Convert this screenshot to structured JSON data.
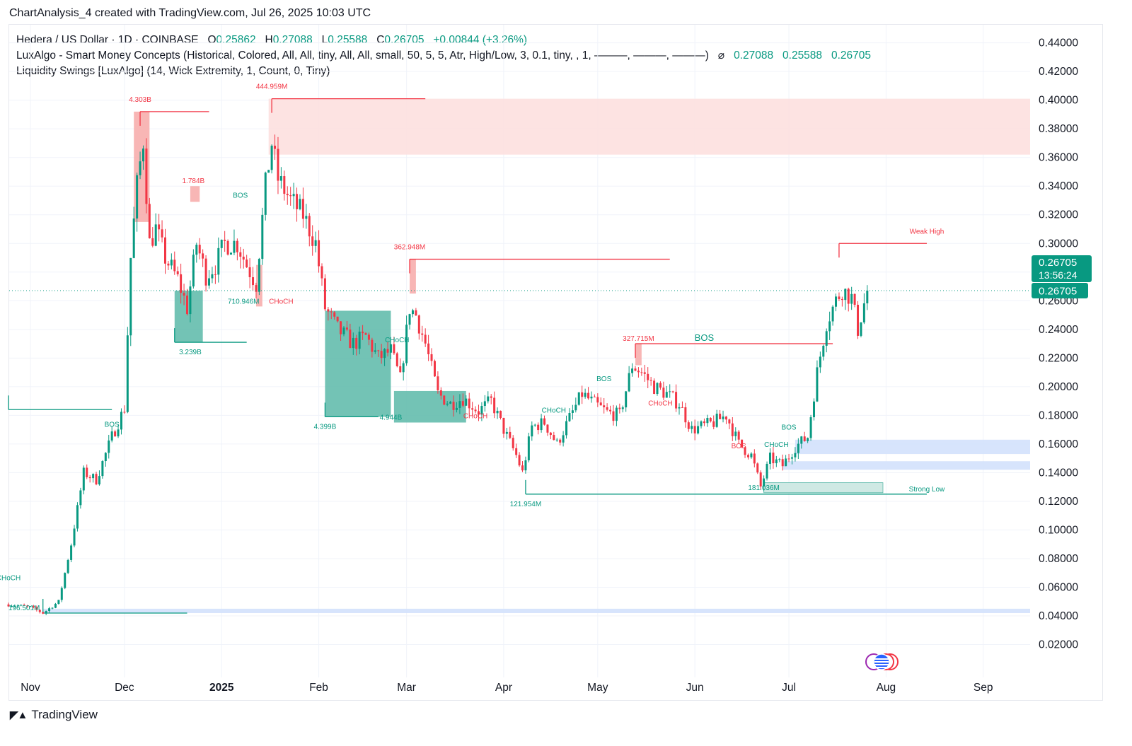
{
  "header": {
    "title": "ChartAnalysis_4 created with TradingView.com, Jul 26, 2025 10:03 UTC"
  },
  "legend": {
    "symbol": "Hedera / US Dollar · 1D · COINBASE",
    "o_label": "O",
    "o_value": "0.25862",
    "h_label": "H",
    "h_value": "0.27088",
    "l_label": "L",
    "l_value": "0.25588",
    "c_label": "C",
    "c_value": "0.26705",
    "change": "+0.00844 (+3.26%)",
    "indicator1": "LuxAlgo - Smart Money Concepts (Historical, Colored, All, All, tiny, All, All, small, 50, 5, 5, Atr, High/Low, 3, 0.1, tiny, , 1, ———, ———, ———)",
    "indicator1_values": [
      "0.27088",
      "0.25588",
      "0.26705"
    ],
    "indicator2": "Liquidity Swings [LuxAlgo] (14, Wick Extremity, 1, Count, 0, Tiny)"
  },
  "brand": {
    "name": "TradingView"
  },
  "price_badge": {
    "price": "0.26705",
    "countdown": "13:56:24"
  },
  "chart_data": {
    "type": "candlestick",
    "x_axis": {
      "ticks": [
        "Nov",
        "Dec",
        "2025",
        "Feb",
        "Mar",
        "Apr",
        "May",
        "Jun",
        "Jul",
        "Aug",
        "Sep"
      ],
      "dates": [
        "2024-11-01",
        "2024-12-01",
        "2025-01-01",
        "2025-02-01",
        "2025-03-01",
        "2025-04-01",
        "2025-05-01",
        "2025-06-01",
        "2025-07-01",
        "2025-08-01",
        "2025-09-01"
      ]
    },
    "y_axis": {
      "min": 0.005,
      "max": 0.45,
      "ticks": [
        "0.02000",
        "0.04000",
        "0.06000",
        "0.08000",
        "0.10000",
        "0.12000",
        "0.14000",
        "0.16000",
        "0.18000",
        "0.20000",
        "0.22000",
        "0.24000",
        "0.26000",
        "0.28000",
        "0.30000",
        "0.32000",
        "0.34000",
        "0.36000",
        "0.38000",
        "0.40000",
        "0.42000",
        "0.44000"
      ]
    },
    "anchors": [
      [
        "2024-10-25",
        0.048
      ],
      [
        "2024-11-01",
        0.046
      ],
      [
        "2024-11-05",
        0.042
      ],
      [
        "2024-11-10",
        0.05
      ],
      [
        "2024-11-14",
        0.09
      ],
      [
        "2024-11-18",
        0.14
      ],
      [
        "2024-11-22",
        0.135
      ],
      [
        "2024-11-27",
        0.165
      ],
      [
        "2024-12-01",
        0.185
      ],
      [
        "2024-12-03",
        0.29
      ],
      [
        "2024-12-05",
        0.34
      ],
      [
        "2024-12-07",
        0.372
      ],
      [
        "2024-12-09",
        0.3
      ],
      [
        "2024-12-11",
        0.31
      ],
      [
        "2024-12-14",
        0.29
      ],
      [
        "2024-12-18",
        0.275
      ],
      [
        "2024-12-21",
        0.255
      ],
      [
        "2024-12-24",
        0.3
      ],
      [
        "2024-12-27",
        0.278
      ],
      [
        "2024-12-30",
        0.285
      ],
      [
        "2025-01-02",
        0.3
      ],
      [
        "2025-01-06",
        0.3
      ],
      [
        "2025-01-09",
        0.285
      ],
      [
        "2025-01-12",
        0.272
      ],
      [
        "2025-01-15",
        0.34
      ],
      [
        "2025-01-17",
        0.37
      ],
      [
        "2025-01-19",
        0.345
      ],
      [
        "2025-01-23",
        0.33
      ],
      [
        "2025-01-27",
        0.32
      ],
      [
        "2025-01-31",
        0.3
      ],
      [
        "2025-02-03",
        0.255
      ],
      [
        "2025-02-07",
        0.24
      ],
      [
        "2025-02-12",
        0.23
      ],
      [
        "2025-02-16",
        0.235
      ],
      [
        "2025-02-20",
        0.22
      ],
      [
        "2025-02-24",
        0.225
      ],
      [
        "2025-02-27",
        0.205
      ],
      [
        "2025-03-02",
        0.255
      ],
      [
        "2025-03-04",
        0.25
      ],
      [
        "2025-03-07",
        0.23
      ],
      [
        "2025-03-11",
        0.195
      ],
      [
        "2025-03-15",
        0.188
      ],
      [
        "2025-03-19",
        0.192
      ],
      [
        "2025-03-24",
        0.183
      ],
      [
        "2025-03-28",
        0.19
      ],
      [
        "2025-04-01",
        0.17
      ],
      [
        "2025-04-05",
        0.152
      ],
      [
        "2025-04-07",
        0.14
      ],
      [
        "2025-04-10",
        0.172
      ],
      [
        "2025-04-14",
        0.175
      ],
      [
        "2025-04-18",
        0.16
      ],
      [
        "2025-04-22",
        0.178
      ],
      [
        "2025-04-26",
        0.195
      ],
      [
        "2025-04-30",
        0.188
      ],
      [
        "2025-05-04",
        0.182
      ],
      [
        "2025-05-08",
        0.18
      ],
      [
        "2025-05-12",
        0.215
      ],
      [
        "2025-05-15",
        0.21
      ],
      [
        "2025-05-19",
        0.2
      ],
      [
        "2025-05-23",
        0.195
      ],
      [
        "2025-05-27",
        0.188
      ],
      [
        "2025-05-31",
        0.17
      ],
      [
        "2025-06-03",
        0.172
      ],
      [
        "2025-06-07",
        0.175
      ],
      [
        "2025-06-11",
        0.18
      ],
      [
        "2025-06-15",
        0.16
      ],
      [
        "2025-06-19",
        0.152
      ],
      [
        "2025-06-22",
        0.13
      ],
      [
        "2025-06-25",
        0.15
      ],
      [
        "2025-06-29",
        0.145
      ],
      [
        "2025-07-03",
        0.158
      ],
      [
        "2025-07-07",
        0.165
      ],
      [
        "2025-07-10",
        0.21
      ],
      [
        "2025-07-13",
        0.245
      ],
      [
        "2025-07-16",
        0.26
      ],
      [
        "2025-07-18",
        0.268
      ],
      [
        "2025-07-21",
        0.262
      ],
      [
        "2025-07-23",
        0.24
      ],
      [
        "2025-07-26",
        0.26705
      ]
    ],
    "zones": [
      {
        "type": "supply",
        "from": "2025-01-16",
        "to": "2025-09-30",
        "top": 0.401,
        "bottom": 0.362
      },
      {
        "type": "supply",
        "from": "2024-12-04",
        "to": "2024-12-09",
        "top": 0.392,
        "bottom": 0.315
      },
      {
        "type": "supply",
        "from": "2024-12-22",
        "to": "2024-12-25",
        "top": 0.34,
        "bottom": 0.329
      },
      {
        "type": "supply",
        "from": "2025-01-12",
        "to": "2025-01-14",
        "top": 0.285,
        "bottom": 0.256
      },
      {
        "type": "supply",
        "from": "2025-03-02",
        "to": "2025-03-04",
        "top": 0.289,
        "bottom": 0.265
      },
      {
        "type": "supply",
        "from": "2025-05-13",
        "to": "2025-05-15",
        "top": 0.23,
        "bottom": 0.215
      },
      {
        "type": "demand",
        "from": "2024-12-17",
        "to": "2024-12-26",
        "top": 0.267,
        "bottom": 0.231
      },
      {
        "type": "demand",
        "from": "2025-02-03",
        "to": "2025-02-24",
        "top": 0.253,
        "bottom": 0.179
      },
      {
        "type": "demand",
        "from": "2025-02-25",
        "to": "2025-03-20",
        "top": 0.197,
        "bottom": 0.175
      },
      {
        "type": "demand",
        "from": "2025-06-23",
        "to": "2025-07-31",
        "top": 0.133,
        "bottom": 0.126
      },
      {
        "type": "fvg",
        "from": "2025-07-03",
        "to": "2025-09-30",
        "top": 0.163,
        "bottom": 0.153
      },
      {
        "type": "fvg",
        "from": "2025-06-29",
        "to": "2025-09-30",
        "top": 0.148,
        "bottom": 0.142
      },
      {
        "type": "fvg",
        "from": "2024-11-05",
        "to": "2025-09-30",
        "top": 0.045,
        "bottom": 0.042
      }
    ],
    "levels": [
      {
        "type": "high",
        "from": "2024-12-06",
        "to": "2024-12-28",
        "price": 0.392,
        "label": "4.303B",
        "label_date": "2024-12-06"
      },
      {
        "type": "high",
        "from": "2025-01-17",
        "to": "2025-03-07",
        "price": 0.401,
        "label": "444.959M",
        "label_date": "2025-01-17"
      },
      {
        "type": "high",
        "from": "2025-03-02",
        "to": "2025-05-24",
        "price": 0.289,
        "label": "362.948M",
        "label_date": "2025-03-02"
      },
      {
        "type": "high",
        "from": "2025-07-17",
        "to": "2025-08-14",
        "price": 0.3,
        "label": "Weak High",
        "label_date": "2025-08-14"
      },
      {
        "type": "low",
        "from": "2024-12-17",
        "to": "2025-01-09",
        "price": 0.231,
        "label": "3.239B",
        "label_date": "2024-12-22"
      },
      {
        "type": "low",
        "from": "2025-02-03",
        "to": "2025-02-20",
        "price": 0.179,
        "label": "4.399B",
        "label_date": "2025-02-03"
      },
      {
        "type": "low",
        "from": "2025-04-08",
        "to": "2025-08-14",
        "price": 0.125,
        "label": "121.954M",
        "label_date": "2025-04-08"
      },
      {
        "type": "low",
        "from": "2024-10-25",
        "to": "2024-11-27",
        "price": 0.184,
        "label": "",
        "label_date": "2024-11-01"
      },
      {
        "type": "low",
        "from": "2024-11-05",
        "to": "2024-12-21",
        "price": 0.042,
        "label": "",
        "label_date": "2024-11-05"
      },
      {
        "type": "high",
        "from": "2025-05-13",
        "to": "2025-07-15",
        "price": 0.23,
        "label": "",
        "label_date": "2025-05-13"
      }
    ],
    "annotations": [
      {
        "text": "BOS",
        "date": "2024-11-27",
        "price": 0.17,
        "color": "bull",
        "size": "small"
      },
      {
        "text": "BOS",
        "date": "2025-01-07",
        "price": 0.33,
        "color": "bull",
        "size": "small"
      },
      {
        "text": "BOS",
        "date": "2025-05-03",
        "price": 0.202,
        "color": "bull",
        "size": "small"
      },
      {
        "text": "BOS",
        "date": "2025-07-01",
        "price": 0.168,
        "color": "bull",
        "size": "small"
      },
      {
        "text": "BOS",
        "date": "2025-06-15",
        "price": 0.155,
        "color": "bear",
        "size": "small"
      },
      {
        "text": "BOS",
        "date": "2025-06-04",
        "price": 0.23,
        "color": "bull",
        "size": "large"
      },
      {
        "text": "CHoCH",
        "date": "2024-10-25",
        "price": 0.063,
        "color": "bull",
        "size": "small"
      },
      {
        "text": "CHoCH",
        "date": "2025-02-26",
        "price": 0.229,
        "color": "bull",
        "size": "small"
      },
      {
        "text": "CHoCH",
        "date": "2025-04-17",
        "price": 0.18,
        "color": "bull",
        "size": "small"
      },
      {
        "text": "CHoCH",
        "date": "2025-06-27",
        "price": 0.156,
        "color": "bull",
        "size": "small"
      },
      {
        "text": "CHoCH",
        "date": "2025-01-20",
        "price": 0.256,
        "color": "bear",
        "size": "small"
      },
      {
        "text": "CHoCH",
        "date": "2025-03-23",
        "price": 0.176,
        "color": "bear",
        "size": "small"
      },
      {
        "text": "CHoCH",
        "date": "2025-05-21",
        "price": 0.185,
        "color": "bear",
        "size": "small"
      },
      {
        "text": "1.784B",
        "date": "2024-12-23",
        "price": 0.34,
        "color": "bear",
        "size": "small"
      },
      {
        "text": "327.715M",
        "date": "2025-05-14",
        "price": 0.23,
        "color": "bear",
        "size": "small"
      },
      {
        "text": "710.946M",
        "date": "2025-01-08",
        "price": 0.256,
        "color": "bull",
        "size": "small"
      },
      {
        "text": "4.944B",
        "date": "2025-02-24",
        "price": 0.175,
        "color": "bull",
        "size": "small"
      },
      {
        "text": "196.501M",
        "date": "2024-10-30",
        "price": 0.042,
        "color": "bull",
        "size": "small"
      },
      {
        "text": "181.036M",
        "date": "2025-06-23",
        "price": 0.126,
        "color": "bull",
        "size": "small"
      },
      {
        "text": "Strong Low",
        "date": "2025-08-14",
        "price": 0.125,
        "color": "bull",
        "size": "small"
      }
    ],
    "colors": {
      "bull": "#089981",
      "bear": "#f23645",
      "supply": "#f7a9a8",
      "supply_light": "#fde0df",
      "demand": "#5ab8a8",
      "demand_light": "#cfe9e4",
      "fvg": "#d0dffb",
      "grid": "#f0f3fa"
    }
  }
}
